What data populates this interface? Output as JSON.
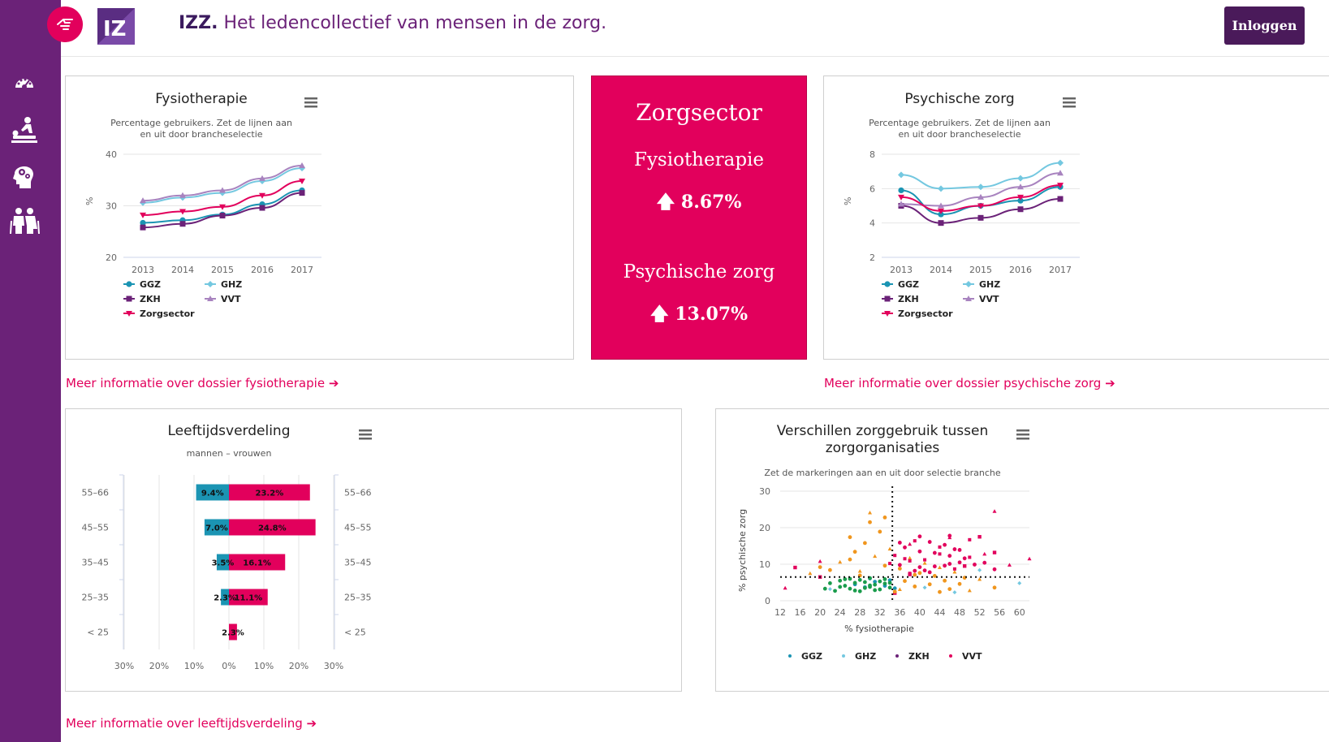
{
  "header": {
    "brand": "IZZ.",
    "tagline": "Het ledencollectief van mensen in de zorg.",
    "login_label": "Inloggen"
  },
  "sidebar": {
    "icons": [
      "dashboard-icon",
      "physiotherapy-icon",
      "mental-care-icon",
      "elderly-icon"
    ]
  },
  "colors": {
    "sidebar": "#6b2278",
    "accent": "#e2005c",
    "GGZ": "#1b94b3",
    "GHZ": "#74c8e0",
    "ZKH": "#6b2278",
    "VVT": "#a883bf",
    "Zorgsector": "#e2005c",
    "men": "#1b94b3",
    "women": "#e2005c",
    "orange": "#f0961e",
    "green": "#1a9c4c"
  },
  "fysio_chart": {
    "title": "Fysiotherapie",
    "subtitle_line1": "Percentage gebruikers. Zet de lijnen aan",
    "subtitle_line2": "en uit door brancheselectie",
    "ylabel": "%",
    "legend": [
      "GGZ",
      "GHZ",
      "ZKH",
      "VVT",
      "Zorgsector"
    ]
  },
  "summary": {
    "title": "Zorgsector",
    "item1_label": "Fysiotherapie",
    "item1_value": "8.67%",
    "item2_label": "Psychische zorg",
    "item2_value": "13.07%"
  },
  "psych_chart": {
    "title": "Psychische zorg",
    "subtitle_line1": "Percentage gebruikers. Zet de lijnen aan",
    "subtitle_line2": "en uit door brancheselectie",
    "ylabel": "%",
    "legend": [
      "GGZ",
      "GHZ",
      "ZKH",
      "VVT",
      "Zorgsector"
    ]
  },
  "age_chart": {
    "title": "Leeftijdsverdeling",
    "subtitle": "mannen – vrouwen"
  },
  "scatter_chart": {
    "title_line1": "Verschillen zorggebruik tussen",
    "title_line2": "zorgorganisaties",
    "subtitle": "Zet de markeringen aan en uit door selectie branche",
    "xlabel": "% fysiotherapie",
    "ylabel": "% psychische zorg",
    "legend": [
      "GGZ",
      "GHZ",
      "ZKH",
      "VVT"
    ]
  },
  "links": {
    "fysio": "Meer informatie over dossier fysiotherapie",
    "psych": "Meer informatie over dossier psychische zorg",
    "age": "Meer informatie over leeftijdsverdeling"
  },
  "chart_data": [
    {
      "type": "line",
      "title": "Fysiotherapie",
      "ylabel": "%",
      "x": [
        2013,
        2014,
        2015,
        2016,
        2017
      ],
      "ylim": [
        20,
        40
      ],
      "yticks": [
        20,
        30,
        40
      ],
      "series": [
        {
          "name": "GGZ",
          "values": [
            26.7,
            27.2,
            28.3,
            30.3,
            33.0
          ]
        },
        {
          "name": "GHZ",
          "values": [
            30.6,
            31.6,
            32.5,
            34.8,
            37.3
          ]
        },
        {
          "name": "ZKH",
          "values": [
            25.8,
            26.5,
            28.1,
            29.6,
            32.5
          ]
        },
        {
          "name": "VVT",
          "values": [
            31.0,
            32.0,
            33.0,
            35.3,
            37.8
          ]
        },
        {
          "name": "Zorgsector",
          "values": [
            28.2,
            28.9,
            29.8,
            32.0,
            34.8
          ]
        }
      ]
    },
    {
      "type": "line",
      "title": "Psychische zorg",
      "ylabel": "%",
      "x": [
        2013,
        2014,
        2015,
        2016,
        2017
      ],
      "ylim": [
        2,
        8
      ],
      "yticks": [
        2,
        4,
        6,
        8
      ],
      "series": [
        {
          "name": "GGZ",
          "values": [
            5.9,
            4.5,
            5.0,
            5.3,
            6.1
          ]
        },
        {
          "name": "GHZ",
          "values": [
            6.8,
            6.0,
            6.1,
            6.6,
            7.5
          ]
        },
        {
          "name": "ZKH",
          "values": [
            5.0,
            4.0,
            4.3,
            4.8,
            5.4
          ]
        },
        {
          "name": "VVT",
          "values": [
            5.1,
            5.0,
            5.5,
            6.1,
            6.9
          ]
        },
        {
          "name": "Zorgsector",
          "values": [
            5.5,
            4.7,
            5.0,
            5.5,
            6.2
          ]
        }
      ]
    },
    {
      "type": "bar",
      "title": "Leeftijdsverdeling",
      "categories": [
        "55-66",
        "45-55",
        "35-45",
        "25-35",
        "< 25"
      ],
      "category_labels": [
        "55–66",
        "45–55",
        "35–45",
        "25–35",
        "< 25"
      ],
      "xlim": [
        -30,
        30
      ],
      "xticks": [
        "30%",
        "20%",
        "10%",
        "0%",
        "10%",
        "20%",
        "30%"
      ],
      "series": [
        {
          "name": "mannen",
          "values": [
            9.4,
            7.0,
            3.5,
            2.3,
            0
          ]
        },
        {
          "name": "vrouwen",
          "values": [
            23.2,
            24.8,
            16.1,
            11.1,
            2.3
          ]
        }
      ],
      "labels_men": [
        "9.4%",
        "7.0%",
        "3.5%",
        "2.3%",
        ""
      ],
      "labels_women": [
        "23.2%",
        "24.8%",
        "16.1%",
        "11.1%",
        "2.3%"
      ]
    },
    {
      "type": "scatter",
      "title": "Verschillen zorggebruik tussen zorgorganisaties",
      "xlabel": "% fysiotherapie",
      "ylabel": "% psychische zorg",
      "xlim": [
        12,
        62
      ],
      "ylim": [
        0,
        30
      ],
      "xticks": [
        12,
        16,
        20,
        24,
        28,
        32,
        36,
        40,
        44,
        48,
        52,
        56,
        60
      ],
      "yticks": [
        0,
        10,
        20,
        30
      ],
      "reference_lines": {
        "x": 34.5,
        "y": 6.5
      },
      "series": [
        {
          "name": "GGZ",
          "points": [
            [
              27,
              4.5
            ],
            [
              29,
              3.7
            ],
            [
              31,
              5.2
            ],
            [
              33,
              4.1
            ],
            [
              34,
              5.6
            ],
            [
              35,
              3.4
            ],
            [
              30,
              6.1
            ]
          ]
        },
        {
          "name": "GHZ",
          "points": [
            [
              22,
              3.2
            ],
            [
              41,
              3.6
            ],
            [
              52,
              8.4
            ],
            [
              60,
              4.8
            ],
            [
              47,
              2.3
            ]
          ]
        },
        {
          "name": "ZKH",
          "points": [
            [
              15,
              9.1
            ],
            [
              20,
              6.5
            ],
            [
              38,
              7.2
            ],
            [
              49,
              9.5
            ],
            [
              52,
              17.5
            ],
            [
              55,
              13.2
            ],
            [
              35,
              2.1
            ]
          ]
        },
        {
          "name": "VVT",
          "points": [
            [
              13,
              3.5
            ],
            [
              20,
              10.8
            ],
            [
              38,
              15.5
            ],
            [
              46,
              17.3
            ],
            [
              55,
              24.5
            ],
            [
              58,
              9.8
            ],
            [
              62,
              11.5
            ],
            [
              53,
              12.8
            ]
          ]
        },
        {
          "name": "green-cluster",
          "points": [
            [
              22,
              4.8
            ],
            [
              24,
              5.5
            ],
            [
              25,
              4.1
            ],
            [
              26,
              3.3
            ],
            [
              27,
              4.9
            ],
            [
              28,
              5.7
            ],
            [
              29,
              3.5
            ],
            [
              30,
              4.2
            ],
            [
              31,
              2.9
            ],
            [
              32,
              5.3
            ],
            [
              33,
              4.7
            ],
            [
              34,
              3.6
            ],
            [
              26,
              6.0
            ],
            [
              28,
              2.6
            ],
            [
              30,
              6.2
            ],
            [
              32,
              3.1
            ],
            [
              24,
              3.8
            ],
            [
              29,
              5.1
            ],
            [
              33,
              5.9
            ],
            [
              21,
              3.3
            ],
            [
              23,
              2.7
            ],
            [
              27,
              2.8
            ],
            [
              31,
              4.4
            ],
            [
              25,
              5.9
            ],
            [
              34,
              4.9
            ],
            [
              30,
              3.8
            ]
          ]
        },
        {
          "name": "orange-cluster",
          "points": [
            [
              18,
              7.5
            ],
            [
              20,
              9.2
            ],
            [
              22,
              8.4
            ],
            [
              24,
              10.6
            ],
            [
              26,
              11.3
            ],
            [
              27,
              13.4
            ],
            [
              28,
              8.1
            ],
            [
              29,
              15.8
            ],
            [
              30,
              21.5
            ],
            [
              31,
              12.2
            ],
            [
              32,
              18.9
            ],
            [
              33,
              9.6
            ],
            [
              34,
              14.2
            ],
            [
              36,
              8.8
            ],
            [
              37,
              5.4
            ],
            [
              38,
              11.7
            ],
            [
              39,
              3.9
            ],
            [
              40,
              7.6
            ],
            [
              41,
              10.3
            ],
            [
              42,
              4.5
            ],
            [
              43,
              6.8
            ],
            [
              44,
              9.1
            ],
            [
              45,
              5.5
            ],
            [
              46,
              3.2
            ],
            [
              47,
              7.9
            ],
            [
              48,
              4.6
            ],
            [
              49,
              6.3
            ],
            [
              50,
              2.8
            ],
            [
              35,
              2.5
            ],
            [
              33,
              22.8
            ],
            [
              30,
              24.1
            ],
            [
              26,
              17.4
            ],
            [
              28,
              6.9
            ],
            [
              36,
              3.1
            ],
            [
              44,
              2.4
            ],
            [
              39,
              7.1
            ],
            [
              52,
              5.9
            ],
            [
              55,
              3.6
            ]
          ]
        },
        {
          "name": "pink-cluster",
          "points": [
            [
              35,
              12.4
            ],
            [
              36,
              9.8
            ],
            [
              37,
              14.6
            ],
            [
              38,
              10.9
            ],
            [
              39,
              8.2
            ],
            [
              40,
              13.5
            ],
            [
              41,
              11.2
            ],
            [
              42,
              16.1
            ],
            [
              43,
              9.4
            ],
            [
              44,
              12.8
            ],
            [
              45,
              15.3
            ],
            [
              46,
              10.1
            ],
            [
              47,
              8.7
            ],
            [
              48,
              13.9
            ],
            [
              49,
              11.6
            ],
            [
              50,
              16.7
            ],
            [
              51,
              9.9
            ],
            [
              36,
              15.9
            ],
            [
              38,
              7.5
            ],
            [
              40,
              9.2
            ],
            [
              42,
              7.8
            ],
            [
              44,
              14.7
            ],
            [
              46,
              12.3
            ],
            [
              48,
              10.5
            ],
            [
              39,
              16.4
            ],
            [
              41,
              8.3
            ],
            [
              43,
              13.1
            ],
            [
              37,
              11.5
            ],
            [
              45,
              9.6
            ],
            [
              47,
              14.1
            ],
            [
              50,
              11.9
            ],
            [
              53,
              10.4
            ],
            [
              55,
              8.6
            ],
            [
              34,
              10.2
            ],
            [
              40,
              17.6
            ],
            [
              46,
              17.8
            ]
          ]
        }
      ]
    }
  ]
}
